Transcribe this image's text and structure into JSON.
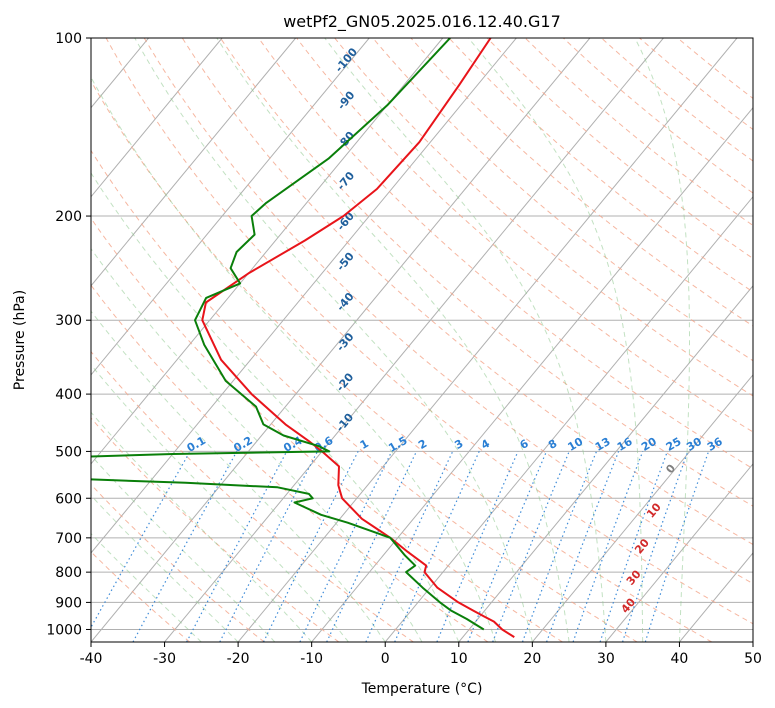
{
  "chart_data": {
    "type": "line",
    "title": "wetPf2_GN05.2025.016.12.40.G17",
    "xlabel": "Temperature (°C)",
    "ylabel": "Pressure (hPa)",
    "xlim": [
      -40,
      50
    ],
    "ylim": [
      1050,
      100
    ],
    "y_scale": "log",
    "grid": true,
    "x_ticks": [
      -40,
      -30,
      -20,
      -10,
      0,
      10,
      20,
      30,
      40,
      50
    ],
    "y_ticks": [
      1000,
      900,
      800,
      700,
      600,
      500,
      400,
      300,
      200,
      100
    ],
    "series": [
      {
        "color": "#e8141a",
        "points": [
          [
            100,
            -53.5
          ],
          [
            120,
            -52.5
          ],
          [
            150,
            -51.5
          ],
          [
            180,
            -52
          ],
          [
            200,
            -53.5
          ],
          [
            220,
            -56
          ],
          [
            250,
            -60
          ],
          [
            280,
            -62.5
          ],
          [
            300,
            -61
          ],
          [
            350,
            -54
          ],
          [
            400,
            -46
          ],
          [
            450,
            -38
          ],
          [
            480,
            -33
          ],
          [
            500,
            -30
          ],
          [
            530,
            -26
          ],
          [
            570,
            -24
          ],
          [
            600,
            -22
          ],
          [
            650,
            -17
          ],
          [
            700,
            -11
          ],
          [
            740,
            -7
          ],
          [
            780,
            -3
          ],
          [
            800,
            -2.5
          ],
          [
            850,
            1
          ],
          [
            900,
            5.5
          ],
          [
            930,
            8.5
          ],
          [
            950,
            10.5
          ],
          [
            970,
            12.5
          ],
          [
            1000,
            14.5
          ],
          [
            1030,
            17
          ]
        ]
      },
      {
        "color": "#0a7f0a",
        "points": [
          [
            100,
            -59
          ],
          [
            130,
            -60
          ],
          [
            160,
            -62
          ],
          [
            190,
            -65.5
          ],
          [
            200,
            -66
          ],
          [
            215,
            -63.5
          ],
          [
            230,
            -64
          ],
          [
            245,
            -63
          ],
          [
            260,
            -60
          ],
          [
            275,
            -63
          ],
          [
            300,
            -62
          ],
          [
            330,
            -58
          ],
          [
            380,
            -51
          ],
          [
            420,
            -44
          ],
          [
            450,
            -41
          ],
          [
            470,
            -37
          ],
          [
            490,
            -31
          ],
          [
            500,
            -29
          ],
          [
            505,
            -50
          ],
          [
            515,
            -72
          ],
          [
            525,
            -82
          ],
          [
            535,
            -83
          ],
          [
            545,
            -73
          ],
          [
            555,
            -63
          ],
          [
            565,
            -45
          ],
          [
            575,
            -32
          ],
          [
            590,
            -27
          ],
          [
            600,
            -26
          ],
          [
            610,
            -28
          ],
          [
            640,
            -23
          ],
          [
            660,
            -18.5
          ],
          [
            700,
            -11
          ],
          [
            750,
            -7
          ],
          [
            780,
            -4.5
          ],
          [
            800,
            -5
          ],
          [
            850,
            -1
          ],
          [
            900,
            3
          ],
          [
            930,
            5.5
          ],
          [
            960,
            8.5
          ],
          [
            1000,
            12
          ]
        ]
      }
    ],
    "annotations": {
      "mixing_ratio_labels": [
        "0.1",
        "0.2",
        "0.4",
        "0.6",
        "1",
        "1.5",
        "2",
        "3",
        "4",
        "6",
        "8",
        "10",
        "13",
        "16",
        "20",
        "25",
        "30",
        "36"
      ],
      "moist_adiabat_labels": [
        "-100",
        "-90",
        "-80",
        "-70",
        "-60",
        "-50",
        "-40",
        "-30",
        "-20",
        "-10"
      ],
      "isotherm_labels": [
        "0",
        "10",
        "20",
        "30",
        "40"
      ]
    },
    "colors": {
      "temperature": "#e8141a",
      "dewpoint": "#0a7f0a",
      "mixing_ratio": "#2a7fd4",
      "moist_label": "#1f5f9c",
      "isotherm_label": "#d22a2a"
    }
  }
}
